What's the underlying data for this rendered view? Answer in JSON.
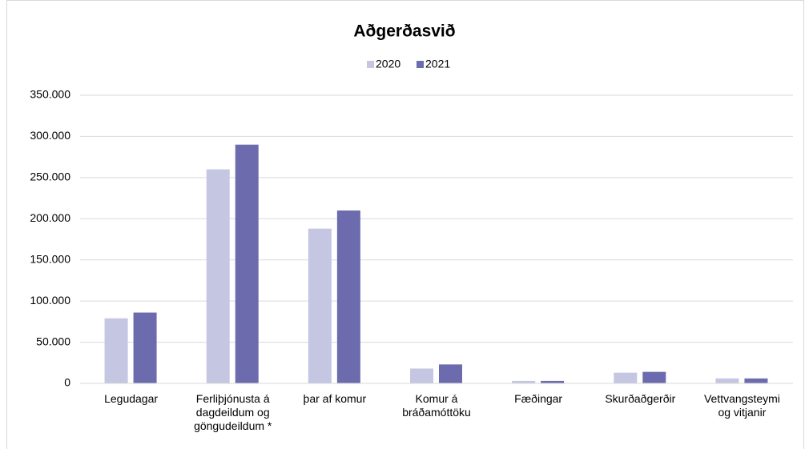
{
  "chart_data": {
    "type": "bar",
    "title": "Aðgerðasvið",
    "categories": [
      "Legudagar",
      "Ferliþjónusta á dagdeildum og göngudeildum *",
      "þar af komur",
      "Komur á bráðamóttöku",
      "Fæðingar",
      "Skurðaðgerðir",
      "Vettvangsteymi og vitjanir"
    ],
    "series": [
      {
        "name": "2020",
        "color": "#c5c6e2",
        "values": [
          79000,
          260000,
          188000,
          18000,
          3000,
          13000,
          6000
        ]
      },
      {
        "name": "2021",
        "color": "#6b6bae",
        "values": [
          86000,
          290000,
          210000,
          23000,
          3000,
          14000,
          6000
        ]
      }
    ],
    "ylim": [
      0,
      350000
    ],
    "yticks": [
      0,
      {
        "value": 50000,
        "label": "50.000"
      },
      {
        "value": 100000,
        "label": "100.000"
      },
      {
        "value": 150000,
        "label": "150.000"
      },
      {
        "value": 200000,
        "label": "200.000"
      },
      {
        "value": 250000,
        "label": "250.000"
      },
      {
        "value": 300000,
        "label": "300.000"
      },
      {
        "value": 350000,
        "label": "350.000"
      }
    ],
    "grid": true,
    "legend": "top"
  }
}
